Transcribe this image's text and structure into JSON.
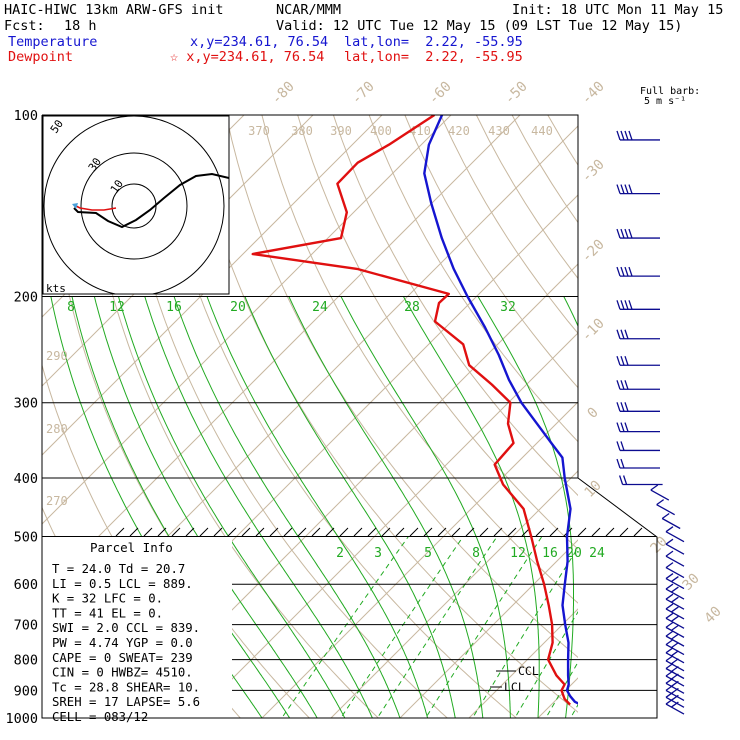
{
  "header": {
    "model": "HAIC-HIWC 13km ARW-GFS init",
    "org": "NCAR/MMM",
    "init": "Init: 18 UTC Mon 11 May 15",
    "fcst_label": "Fcst:",
    "fcst_value": "18 h",
    "valid": "Valid: 12 UTC Tue 12 May 15 (09 LST Tue 12 May 15)",
    "temp_label": "Temperature",
    "temp_loc": "x,y=234.61, 76.54",
    "temp_latlon": "lat,lon=  2.22, -55.95",
    "dew_label": "Dewpoint",
    "dew_loc": "☆ x,y=234.61, 76.54",
    "dew_latlon": "lat,lon=  2.22, -55.95"
  },
  "barb_legend": {
    "line1": "Full barb:",
    "line2": "5 m s⁻¹"
  },
  "parcel_info": {
    "title": "Parcel Info",
    "rows": [
      "T   =    24.0  Td =  20.7",
      "LI  =     0.5  LCL =  889.",
      "K   =      32  LFC =    0.",
      "TT  =      41  EL  =    0.",
      "SWI =     2.0  CCL =  839.",
      "PW  =    4.74  YGP =   0.0",
      "CAPE =      0  SWEAT=  239",
      "CIN  =      0  HWBZ= 4510.",
      "Tc  =    28.8  SHEAR=  10.",
      "SREH =     17  LAPSE=  5.6",
      "CELL = 083/12"
    ]
  },
  "hodograph": {
    "label": "kts",
    "ring_labels": [
      "50",
      "30",
      "10"
    ]
  },
  "level_labels": {
    "ccl": "CCL",
    "lcl": "LCL"
  },
  "colors": {
    "temperature": "#1515d0",
    "dewpoint": "#e01010",
    "dry_adiabat": "#c8b8a0",
    "moist_adiabat": "#22aa22",
    "mixing_ratio": "#22aa22",
    "isobar": "#000000",
    "wind_barb": "#0c0c90"
  },
  "chart_data": {
    "type": "line",
    "diagram": "skew-T log-p",
    "ylabel": "",
    "xlabel": "",
    "pressure_levels": [
      100,
      200,
      300,
      400,
      500,
      600,
      700,
      800,
      900,
      1000
    ],
    "isotherm_labels": [
      "-80",
      "-70",
      "-60",
      "-50",
      "-40",
      "-30",
      "-20",
      "-10",
      "0",
      "10",
      "20",
      "30",
      "40"
    ],
    "isentrope_labels_upper": [
      "370",
      "380",
      "390",
      "400",
      "410",
      "420",
      "430",
      "440"
    ],
    "isentrope_labels_left": [
      "290",
      "280",
      "270"
    ],
    "moist_labels": [
      "8",
      "12",
      "16",
      "20",
      "24",
      "28",
      "32"
    ],
    "mixing_ratio_labels": [
      "2",
      "3",
      "5",
      "8",
      "12",
      "16",
      "20",
      "24"
    ],
    "series": [
      {
        "name": "Temperature",
        "points": [
          {
            "p": 960,
            "t": 25.4
          },
          {
            "p": 940,
            "t": 23.0
          },
          {
            "p": 920,
            "t": 21.5
          },
          {
            "p": 900,
            "t": 20.2
          },
          {
            "p": 880,
            "t": 19.6
          },
          {
            "p": 850,
            "t": 18.2
          },
          {
            "p": 800,
            "t": 15.9
          },
          {
            "p": 750,
            "t": 13.5
          },
          {
            "p": 700,
            "t": 10.4
          },
          {
            "p": 650,
            "t": 7.2
          },
          {
            "p": 600,
            "t": 4.5
          },
          {
            "p": 550,
            "t": 1.6
          },
          {
            "p": 500,
            "t": -2.1
          },
          {
            "p": 450,
            "t": -5.6
          },
          {
            "p": 400,
            "t": -10.9
          },
          {
            "p": 370,
            "t": -14.2
          },
          {
            "p": 350,
            "t": -17.9
          },
          {
            "p": 325,
            "t": -22.8
          },
          {
            "p": 300,
            "t": -28.1
          },
          {
            "p": 275,
            "t": -33.2
          },
          {
            "p": 250,
            "t": -38.3
          },
          {
            "p": 225,
            "t": -44.3
          },
          {
            "p": 200,
            "t": -51.3
          },
          {
            "p": 180,
            "t": -57.3
          },
          {
            "p": 160,
            "t": -63.5
          },
          {
            "p": 140,
            "t": -70.1
          },
          {
            "p": 125,
            "t": -75.4
          },
          {
            "p": 112,
            "t": -78.9
          },
          {
            "p": 100,
            "t": -81.3
          }
        ]
      },
      {
        "name": "Dewpoint",
        "points": [
          {
            "p": 950,
            "t": 22.7
          },
          {
            "p": 930,
            "t": 21.1
          },
          {
            "p": 900,
            "t": 19.4
          },
          {
            "p": 880,
            "t": 19.0
          },
          {
            "p": 850,
            "t": 16.5
          },
          {
            "p": 800,
            "t": 13.0
          },
          {
            "p": 750,
            "t": 11.2
          },
          {
            "p": 700,
            "t": 8.5
          },
          {
            "p": 650,
            "t": 5.2
          },
          {
            "p": 600,
            "t": 1.5
          },
          {
            "p": 550,
            "t": -2.8
          },
          {
            "p": 500,
            "t": -7.3
          },
          {
            "p": 450,
            "t": -12.4
          },
          {
            "p": 410,
            "t": -18.9
          },
          {
            "p": 380,
            "t": -23.0
          },
          {
            "p": 350,
            "t": -23.4
          },
          {
            "p": 325,
            "t": -27.0
          },
          {
            "p": 300,
            "t": -29.7
          },
          {
            "p": 280,
            "t": -35.0
          },
          {
            "p": 260,
            "t": -41.1
          },
          {
            "p": 240,
            "t": -45.0
          },
          {
            "p": 220,
            "t": -52.4
          },
          {
            "p": 205,
            "t": -54.5
          },
          {
            "p": 198,
            "t": -54.4
          },
          {
            "p": 180,
            "t": -71.3
          },
          {
            "p": 170,
            "t": -88.6
          },
          {
            "p": 160,
            "t": -78.1
          },
          {
            "p": 145,
            "t": -81.0
          },
          {
            "p": 130,
            "t": -86.5
          },
          {
            "p": 120,
            "t": -86.6
          },
          {
            "p": 112,
            "t": -84.7
          },
          {
            "p": 100,
            "t": -82.4
          }
        ]
      }
    ]
  }
}
